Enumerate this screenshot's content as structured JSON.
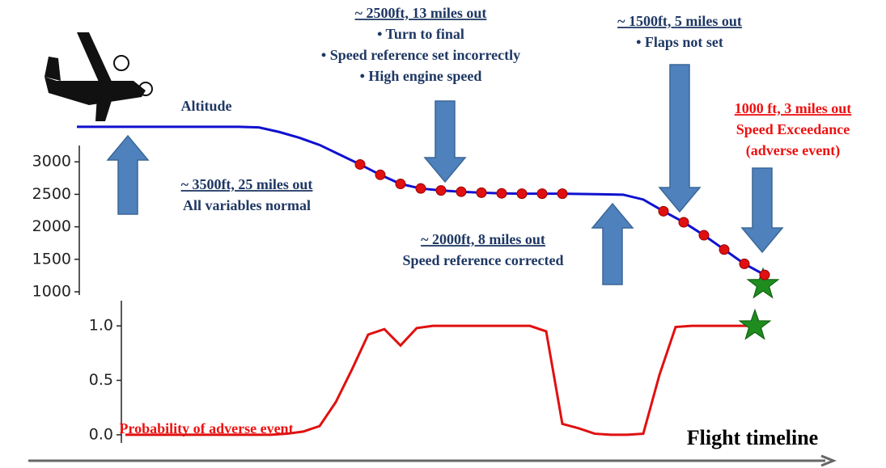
{
  "chart_data": [
    {
      "type": "line",
      "label": "Altitude",
      "ylim": [
        950,
        3600
      ],
      "yticks": [
        1000,
        1500,
        2000,
        2500,
        3000
      ],
      "series": [
        {
          "color": "#1010d0",
          "values": [
            3540,
            3540,
            3540,
            3540,
            3540,
            3540,
            3540,
            3540,
            3540,
            3530,
            3460,
            3370,
            3260,
            3110,
            2960,
            2800,
            2660,
            2590,
            2560,
            2540,
            2525,
            2515,
            2510,
            2510,
            2510,
            2505,
            2500,
            2495,
            2420,
            2240,
            2070,
            1870,
            1650,
            1430,
            1260
          ]
        },
        {
          "color": "#e01010",
          "values": [
            null,
            null,
            null,
            null,
            null,
            null,
            null,
            null,
            null,
            null,
            null,
            null,
            null,
            null,
            2960,
            2800,
            2660,
            2590,
            2560,
            2540,
            2525,
            2515,
            2510,
            2510,
            2510,
            null,
            null,
            null,
            null,
            2240,
            2070,
            1870,
            1650,
            1430,
            1260
          ]
        }
      ]
    },
    {
      "type": "line",
      "label": "Probability of adverse event",
      "ylim": [
        -0.06,
        1.12
      ],
      "yticks": [
        {
          "value": 0,
          "label": "0.0"
        },
        {
          "value": 0.5,
          "label": "0.5"
        },
        {
          "value": 1,
          "label": "1.0"
        }
      ],
      "series": [
        {
          "color": "#e01010",
          "values": [
            0,
            0,
            0,
            0,
            0,
            0,
            0,
            0,
            0,
            0,
            0.01,
            0.03,
            0.08,
            0.3,
            0.6,
            0.92,
            0.97,
            0.82,
            0.98,
            1,
            1,
            1,
            1,
            1,
            1,
            1,
            0.95,
            0.1,
            0.06,
            0.01,
            0,
            0,
            0.01,
            0.55,
            0.99,
            1,
            1,
            1,
            1,
            1
          ]
        }
      ]
    }
  ],
  "annotations": [
    {
      "color": "#1f3864",
      "lines": [
        "~ 3500ft, 25 miles out",
        "All variables normal"
      ]
    },
    {
      "color": "#1f3864",
      "lines": [
        "~ 2500ft, 13 miles out",
        "•   Turn to final",
        "•   Speed reference set incorrectly",
        "•   High engine speed"
      ]
    },
    {
      "color": "#1f3864",
      "lines": [
        "~ 2000ft, 8 miles out",
        "Speed reference corrected"
      ]
    },
    {
      "color": "#1f3864",
      "lines": [
        "~ 1500ft, 5 miles out",
        "•   Flaps not set"
      ]
    },
    {
      "color": "#ee1111",
      "lines": [
        "1000 ft, 3 miles out",
        "Speed Exceedance",
        "(adverse event)"
      ]
    }
  ],
  "timeline_label": "Flight timeline"
}
